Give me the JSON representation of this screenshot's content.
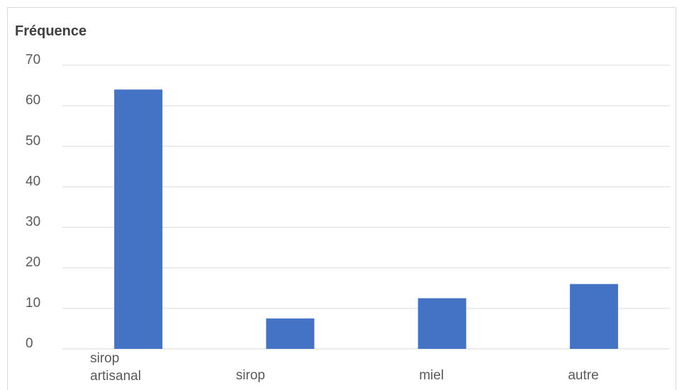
{
  "chart_data": {
    "type": "bar",
    "title": "Fréquence",
    "categories": [
      [
        "sirop",
        "artisanal"
      ],
      [
        "sirop"
      ],
      [
        "miel"
      ],
      [
        "autre"
      ]
    ],
    "values": [
      64,
      7.5,
      12.5,
      16
    ],
    "ylim": [
      0,
      70
    ],
    "yticks": [
      "70",
      "60",
      "50",
      "40",
      "30",
      "20",
      "10",
      "0"
    ],
    "grid": true,
    "bar_color": "#4472c4",
    "grid_color": "#d9d9d9",
    "text_color": "#595959"
  }
}
